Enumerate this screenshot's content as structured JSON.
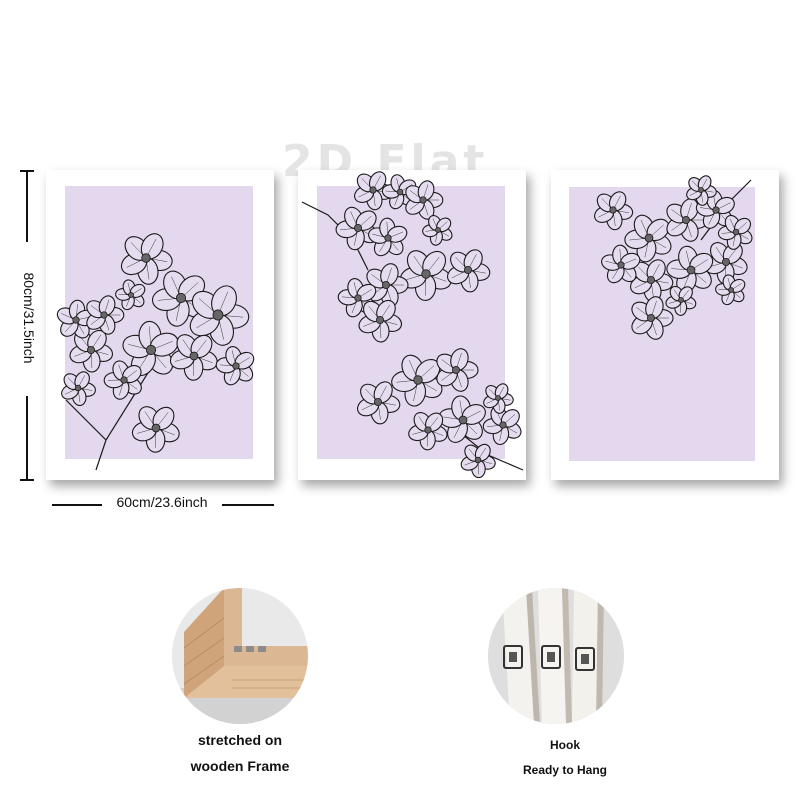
{
  "watermark": "2D Flat",
  "dimensions": {
    "height_label": "80cm/31.5inch",
    "width_label": "60cm/23.6inch"
  },
  "panels": [
    {
      "name": "left-panel",
      "tint": "#e3d8ee"
    },
    {
      "name": "middle-panel",
      "tint": "#e3d8ee"
    },
    {
      "name": "right-panel",
      "tint": "#e3d8ee"
    }
  ],
  "features": {
    "frame": {
      "line1": "stretched on",
      "line2": "wooden Frame",
      "icon": "wooden-frame-corner-icon"
    },
    "hook": {
      "line1": "Hook",
      "line2": "Ready to Hang",
      "icon": "hanging-hook-icon"
    }
  },
  "colors": {
    "tint": "#e3d8ee",
    "ink": "#1a1a1a",
    "wood": "#d9b58e"
  }
}
